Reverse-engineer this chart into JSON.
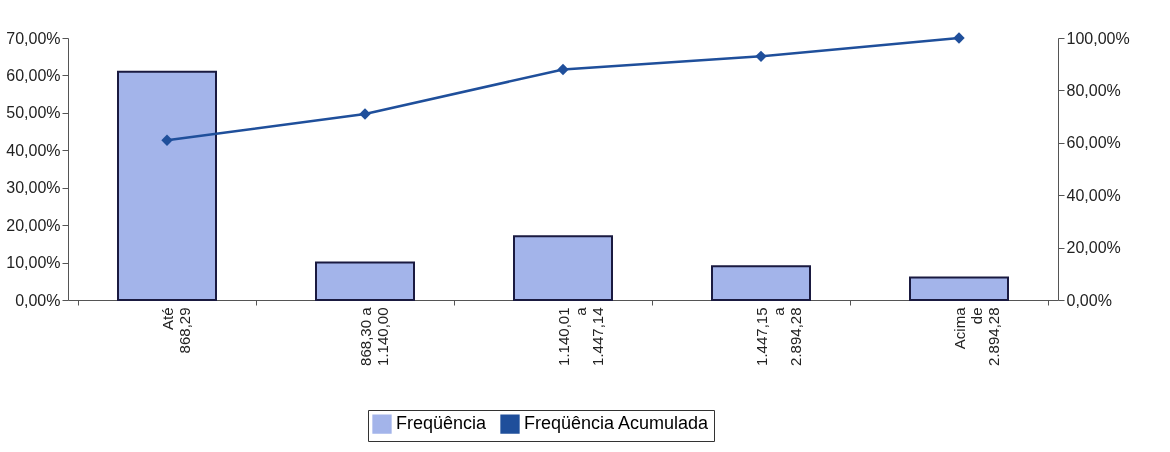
{
  "chart_data": {
    "type": "bar",
    "categories": [
      "Até\n868,29",
      "868,30 a\n1.140,00",
      "1.140,01\na\n1.447,14",
      "1.447,15\na\n2.894,28",
      "Acima\nde\n2.894,28"
    ],
    "series": [
      {
        "name": "Freqüência",
        "color": "#a3b4ea",
        "values": [
          61,
          10,
          17,
          9,
          6
        ]
      },
      {
        "name": "Freqüência Acumulada",
        "type": "line",
        "axis": "y2",
        "color": "#1f4f9b",
        "marker": "diamond",
        "values": [
          61,
          71,
          88,
          93,
          100
        ]
      }
    ],
    "ylim": [
      0,
      70
    ],
    "yticks": [
      {
        "value": 0,
        "label": "0,00%"
      },
      {
        "value": 10,
        "label": "10,00%"
      },
      {
        "value": 20,
        "label": "20,00%"
      },
      {
        "value": 30,
        "label": "30,00%"
      },
      {
        "value": 40,
        "label": "40,00%"
      },
      {
        "value": 50,
        "label": "50,00%"
      },
      {
        "value": 60,
        "label": "60,00%"
      },
      {
        "value": 70,
        "label": "70,00%"
      }
    ],
    "y2lim": [
      0,
      100
    ],
    "y2ticks": [
      {
        "value": 0,
        "label": "0,00%"
      },
      {
        "value": 20,
        "label": "20,00%"
      },
      {
        "value": 40,
        "label": "40,00%"
      },
      {
        "value": 60,
        "label": "60,00%"
      },
      {
        "value": 80,
        "label": "80,00%"
      },
      {
        "value": 100,
        "label": "100,00%"
      }
    ],
    "grid": false,
    "legend": "bottom"
  }
}
